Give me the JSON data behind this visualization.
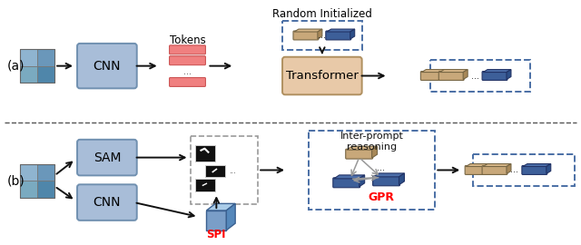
{
  "bg_color": "#ffffff",
  "label_a": "(a)",
  "label_b": "(b)",
  "cnn_color": "#a8bdd8",
  "transformer_color": "#e8c9a8",
  "sam_color": "#a8bdd8",
  "token_color": "#f08080",
  "dashed_box_color_blue": "#4a6fa5",
  "dashed_box_color_gray": "#aaaaaa",
  "arrow_color": "#111111",
  "gray_arrow_color": "#999999",
  "title_rand_init": "Random Initialized",
  "title_tokens": "Tokens",
  "label_spi": "SPI",
  "label_gpr": "GPR",
  "label_interprompt": "Inter-prompt\nreasoning"
}
